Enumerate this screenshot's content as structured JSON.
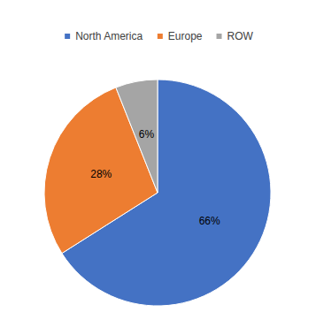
{
  "chart_data": {
    "type": "pie",
    "categories": [
      "North America",
      "Europe",
      "ROW"
    ],
    "values": [
      66,
      28,
      6
    ],
    "value_labels": [
      "66%",
      "28%",
      "6%"
    ],
    "colors": [
      "#4472c4",
      "#ed7d31",
      "#a5a5a5"
    ],
    "legend": "top",
    "data_labels": true
  }
}
